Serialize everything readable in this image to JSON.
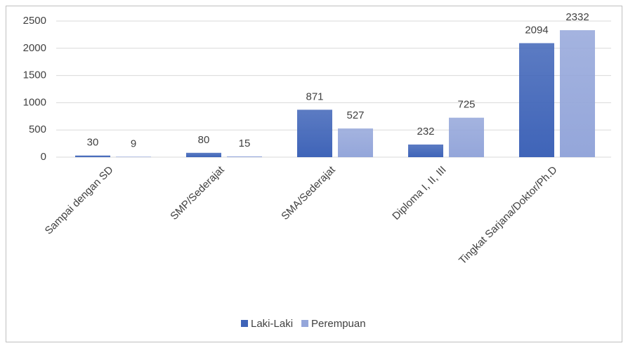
{
  "chart_data": {
    "type": "bar",
    "categories": [
      "Sampai dengan SD",
      "SMP/Sederajat",
      "SMA/Sederajat",
      "Diploma I, II, III",
      "Tingkat Sarjana/Doktor/Ph.D"
    ],
    "series": [
      {
        "name": "Laki-Laki",
        "color": "#3f64b8",
        "values": [
          30,
          80,
          871,
          232,
          2094
        ]
      },
      {
        "name": "Perempuan",
        "color": "#94a6da",
        "values": [
          9,
          15,
          527,
          725,
          2332
        ]
      }
    ],
    "ylim": [
      0,
      2500
    ],
    "yticks": [
      0,
      500,
      1000,
      1500,
      2000,
      2500
    ],
    "grid": true,
    "legend": "bottom"
  }
}
